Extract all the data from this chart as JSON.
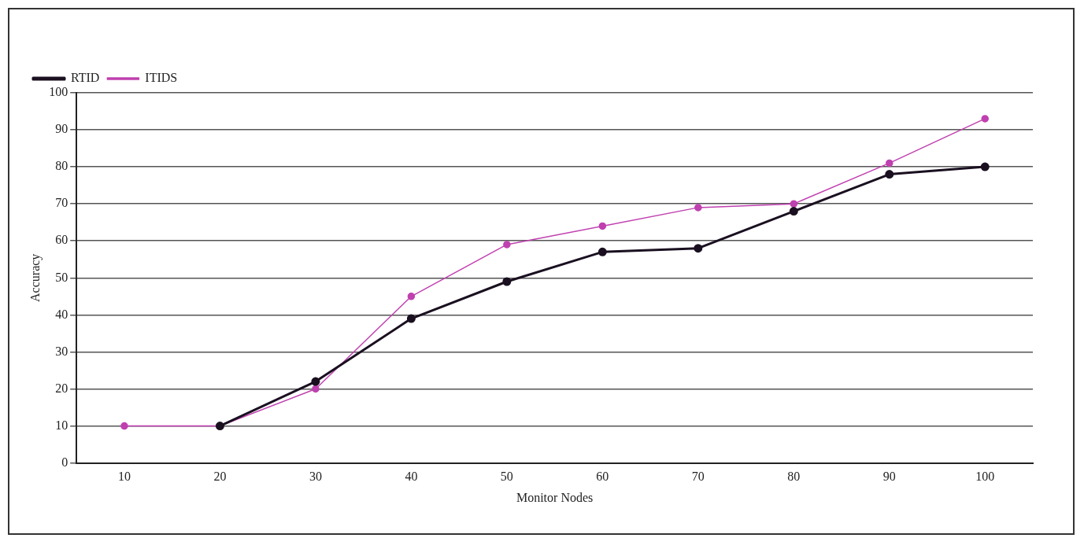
{
  "chart_data": {
    "type": "line",
    "xlabel": "Monitor Nodes",
    "ylabel": "Accuracy",
    "categories": [
      "10",
      "20",
      "30",
      "40",
      "50",
      "60",
      "70",
      "80",
      "90",
      "100"
    ],
    "series": [
      {
        "name": "RTID",
        "color": "#1a1020",
        "values": [
          null,
          10,
          22,
          39,
          49,
          57,
          58,
          68,
          78,
          80
        ]
      },
      {
        "name": "ITIDS",
        "color": "#c040b0",
        "values": [
          10,
          10,
          20,
          45,
          59,
          64,
          69,
          70,
          81,
          93
        ]
      }
    ],
    "ylim": [
      0,
      100
    ],
    "yticks": [
      0,
      10,
      20,
      30,
      40,
      50,
      60,
      70,
      80,
      90,
      100
    ],
    "grid": "y",
    "legend": "top left",
    "marker": "circle",
    "line_style": "solid"
  }
}
